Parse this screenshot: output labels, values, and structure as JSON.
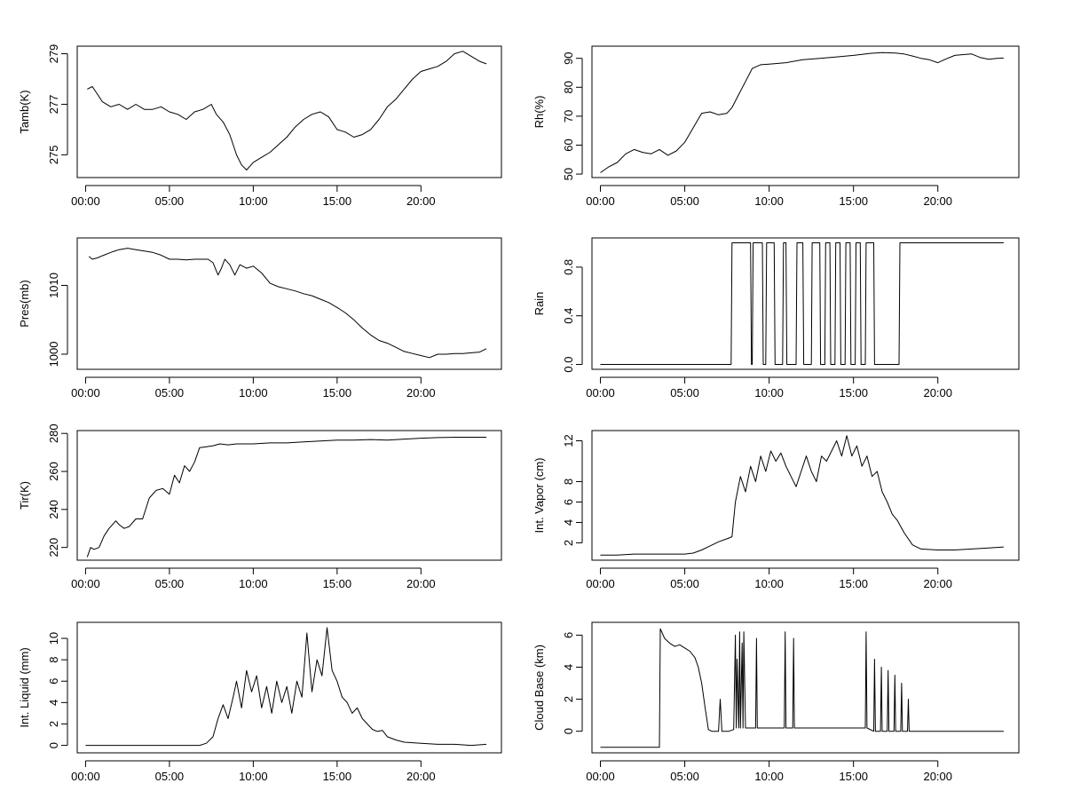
{
  "chart_data": [
    {
      "type": "line",
      "ylabel": "Tamb(K)",
      "x_ticks": [
        "00:00",
        "05:00",
        "10:00",
        "15:00",
        "20:00"
      ],
      "y_ticks": [
        "275",
        "277",
        "279"
      ],
      "ylim": [
        274.1,
        279.3
      ],
      "x_unit": "hours",
      "xlim": [
        -0.5,
        24.8
      ],
      "series": [
        {
          "x": [
            0.1,
            0.4,
            0.8,
            1.0,
            1.5,
            2.0,
            2.5,
            3.0,
            3.5,
            4.0,
            4.5,
            5.0,
            5.5,
            6.0,
            6.5,
            7.0,
            7.5,
            7.8,
            8.2,
            8.6,
            9.0,
            9.3,
            9.6,
            10.0,
            10.5,
            11.0,
            11.5,
            12.0,
            12.5,
            13.0,
            13.5,
            14.0,
            14.5,
            15.0,
            15.5,
            16.0,
            16.5,
            17.0,
            17.5,
            18.0,
            18.5,
            19.0,
            19.5,
            20.0,
            20.5,
            21.0,
            21.5,
            22.0,
            22.5,
            23.0,
            23.5,
            23.9
          ],
          "y": [
            277.6,
            277.7,
            277.3,
            277.1,
            276.9,
            277.0,
            276.8,
            277.0,
            276.8,
            276.8,
            276.9,
            276.7,
            276.6,
            276.4,
            276.7,
            276.8,
            277.0,
            276.6,
            276.3,
            275.8,
            275.0,
            274.6,
            274.4,
            274.7,
            274.9,
            275.1,
            275.4,
            275.7,
            276.1,
            276.4,
            276.6,
            276.7,
            276.5,
            276.0,
            275.9,
            275.7,
            275.8,
            276.0,
            276.4,
            276.9,
            277.2,
            277.6,
            278.0,
            278.3,
            278.4,
            278.5,
            278.7,
            279.0,
            279.1,
            278.9,
            278.7,
            278.6
          ]
        }
      ]
    },
    {
      "type": "line",
      "ylabel": "Rh(%)",
      "x_ticks": [
        "00:00",
        "05:00",
        "10:00",
        "15:00",
        "20:00"
      ],
      "y_ticks": [
        "50",
        "60",
        "70",
        "80",
        "90"
      ],
      "ylim": [
        48.8,
        94.2
      ],
      "x_unit": "hours",
      "xlim": [
        -0.5,
        24.8
      ],
      "series": [
        {
          "x": [
            0.0,
            0.5,
            1.0,
            1.5,
            2.0,
            2.5,
            3.0,
            3.5,
            4.0,
            4.5,
            5.0,
            5.5,
            6.0,
            6.5,
            7.0,
            7.5,
            7.8,
            8.2,
            8.6,
            9.0,
            9.5,
            10.0,
            11.0,
            12.0,
            13.0,
            14.0,
            15.0,
            16.0,
            16.7,
            17.5,
            18.0,
            18.5,
            19.0,
            19.5,
            20.0,
            20.5,
            21.0,
            21.5,
            22.0,
            22.5,
            23.0,
            23.5,
            23.9
          ],
          "y": [
            50.5,
            52.5,
            54.0,
            57.0,
            58.5,
            57.5,
            57.0,
            58.5,
            56.5,
            58.0,
            61.0,
            66.0,
            71.0,
            71.5,
            70.5,
            71.0,
            73.0,
            77.5,
            82.0,
            86.5,
            87.8,
            88.0,
            88.5,
            89.5,
            90.0,
            90.5,
            91.0,
            91.7,
            92.0,
            91.8,
            91.5,
            90.8,
            90.0,
            89.5,
            88.5,
            89.8,
            91.0,
            91.3,
            91.5,
            90.3,
            89.7,
            90.0,
            90.1
          ]
        }
      ]
    },
    {
      "type": "line",
      "ylabel": "Pres(mb)",
      "x_ticks": [
        "00:00",
        "05:00",
        "10:00",
        "15:00",
        "20:00"
      ],
      "y_ticks": [
        "1000",
        "1010"
      ],
      "ylim": [
        997.8,
        1016.9
      ],
      "x_unit": "hours",
      "xlim": [
        -0.5,
        24.8
      ],
      "series": [
        {
          "x": [
            0.2,
            0.4,
            0.7,
            1.0,
            1.5,
            2.0,
            2.5,
            3.0,
            3.5,
            4.0,
            4.5,
            5.0,
            5.5,
            6.0,
            6.5,
            7.0,
            7.3,
            7.6,
            7.9,
            8.1,
            8.3,
            8.6,
            8.9,
            9.2,
            9.6,
            10.0,
            10.5,
            11.0,
            11.5,
            12.0,
            12.5,
            13.0,
            13.5,
            14.0,
            14.5,
            15.0,
            15.5,
            16.0,
            16.5,
            17.0,
            17.5,
            18.0,
            18.5,
            19.0,
            19.5,
            20.0,
            20.5,
            21.0,
            21.5,
            22.0,
            22.5,
            23.0,
            23.5,
            23.9
          ],
          "y": [
            1014.2,
            1013.8,
            1014.0,
            1014.3,
            1014.8,
            1015.2,
            1015.4,
            1015.2,
            1015.0,
            1014.8,
            1014.4,
            1013.8,
            1013.8,
            1013.7,
            1013.8,
            1013.8,
            1013.8,
            1013.3,
            1011.5,
            1012.5,
            1013.8,
            1013.0,
            1011.5,
            1013.0,
            1012.5,
            1012.8,
            1011.8,
            1010.3,
            1009.8,
            1009.5,
            1009.2,
            1008.8,
            1008.5,
            1008.0,
            1007.5,
            1006.8,
            1006.0,
            1005.0,
            1003.8,
            1002.8,
            1002.0,
            1001.6,
            1001.0,
            1000.4,
            1000.1,
            999.8,
            999.5,
            1000.0,
            1000.0,
            1000.1,
            1000.1,
            1000.2,
            1000.3,
            1000.8
          ]
        }
      ]
    },
    {
      "type": "line",
      "ylabel": "Rain",
      "x_ticks": [
        "00:00",
        "05:00",
        "10:00",
        "15:00",
        "20:00"
      ],
      "y_ticks": [
        "0.0",
        "0.4",
        "0.8"
      ],
      "ylim": [
        -0.04,
        1.04
      ],
      "x_unit": "hours",
      "xlim": [
        -0.5,
        24.8
      ],
      "series": [
        {
          "x": [
            0.0,
            7.75,
            7.8,
            8.9,
            8.95,
            9.0,
            9.05,
            9.6,
            9.65,
            9.8,
            9.85,
            10.3,
            10.35,
            10.8,
            10.85,
            11.0,
            11.05,
            11.6,
            11.65,
            12.0,
            12.05,
            12.5,
            12.55,
            13.0,
            13.05,
            13.3,
            13.35,
            13.6,
            13.65,
            13.9,
            13.95,
            14.2,
            14.25,
            14.5,
            14.55,
            14.8,
            14.85,
            15.1,
            15.15,
            15.4,
            15.45,
            15.7,
            15.75,
            16.2,
            16.25,
            17.7,
            17.75,
            23.9
          ],
          "y": [
            0,
            0,
            1,
            1,
            0,
            0,
            1,
            1,
            0,
            0,
            1,
            1,
            0,
            0,
            1,
            1,
            0,
            0,
            1,
            1,
            0,
            0,
            1,
            1,
            0,
            0,
            1,
            1,
            0,
            0,
            1,
            1,
            0,
            0,
            1,
            1,
            0,
            0,
            1,
            1,
            0,
            0,
            1,
            1,
            0,
            0,
            1,
            1
          ]
        }
      ]
    },
    {
      "type": "line",
      "ylabel": "Tir(K)",
      "x_ticks": [
        "00:00",
        "05:00",
        "10:00",
        "15:00",
        "20:00"
      ],
      "y_ticks": [
        "220",
        "240",
        "260",
        "280"
      ],
      "ylim": [
        213.3,
        281.5
      ],
      "x_unit": "hours",
      "xlim": [
        -0.5,
        24.8
      ],
      "series": [
        {
          "x": [
            0.1,
            0.3,
            0.5,
            0.8,
            1.1,
            1.4,
            1.8,
            2.0,
            2.3,
            2.6,
            3.0,
            3.4,
            3.8,
            4.2,
            4.6,
            5.0,
            5.3,
            5.6,
            5.9,
            6.2,
            6.5,
            6.8,
            7.2,
            7.6,
            8.0,
            8.5,
            9.0,
            10.0,
            11.0,
            12.0,
            13.0,
            14.0,
            15.0,
            16.0,
            17.0,
            18.0,
            19.0,
            20.0,
            21.0,
            22.0,
            23.0,
            23.9
          ],
          "y": [
            215.0,
            220.0,
            219.0,
            220.0,
            226.0,
            230.0,
            234.0,
            232.0,
            230.0,
            231.0,
            235.0,
            235.0,
            246.0,
            250.0,
            251.0,
            248.0,
            258.0,
            254.0,
            263.0,
            260.0,
            265.0,
            272.5,
            273.0,
            273.5,
            274.5,
            274.0,
            274.5,
            274.5,
            275.0,
            275.0,
            275.5,
            276.0,
            276.5,
            276.5,
            276.8,
            276.5,
            277.0,
            277.5,
            277.8,
            278.0,
            278.0,
            278.0
          ]
        }
      ]
    },
    {
      "type": "line",
      "ylabel": "Int. Vapor (cm)",
      "x_ticks": [
        "00:00",
        "05:00",
        "10:00",
        "15:00",
        "20:00"
      ],
      "y_ticks": [
        "2",
        "4",
        "6",
        "8",
        "12"
      ],
      "ylim": [
        0.3,
        13.0
      ],
      "x_unit": "hours",
      "xlim": [
        -0.5,
        24.8
      ],
      "series": [
        {
          "x": [
            0.0,
            1.0,
            2.0,
            3.0,
            4.0,
            5.0,
            5.5,
            6.0,
            6.5,
            7.0,
            7.5,
            7.8,
            8.0,
            8.3,
            8.6,
            8.9,
            9.2,
            9.5,
            9.8,
            10.1,
            10.4,
            10.7,
            11.0,
            11.3,
            11.6,
            11.9,
            12.2,
            12.5,
            12.8,
            13.1,
            13.4,
            13.7,
            14.0,
            14.3,
            14.6,
            14.9,
            15.2,
            15.5,
            15.8,
            16.1,
            16.4,
            16.7,
            17.0,
            17.3,
            17.6,
            18.0,
            18.5,
            19.0,
            20.0,
            21.0,
            22.0,
            23.0,
            23.9
          ],
          "y": [
            0.8,
            0.8,
            0.9,
            0.9,
            0.9,
            0.9,
            1.0,
            1.3,
            1.7,
            2.1,
            2.4,
            2.6,
            6.0,
            8.5,
            7.0,
            9.5,
            8.0,
            10.5,
            9.0,
            11.0,
            10.0,
            10.8,
            9.5,
            8.5,
            7.5,
            9.0,
            10.5,
            9.0,
            8.0,
            10.5,
            10.0,
            11.0,
            12.0,
            10.5,
            12.5,
            10.5,
            11.5,
            9.5,
            10.5,
            8.5,
            9.0,
            7.0,
            6.0,
            4.8,
            4.2,
            3.0,
            1.8,
            1.4,
            1.3,
            1.3,
            1.4,
            1.5,
            1.6
          ]
        }
      ]
    },
    {
      "type": "line",
      "ylabel": "Int. Liquid (mm)",
      "x_ticks": [
        "00:00",
        "05:00",
        "10:00",
        "15:00",
        "20:00"
      ],
      "y_ticks": [
        "0",
        "2",
        "4",
        "6",
        "8",
        "10"
      ],
      "ylim": [
        -0.7,
        11.5
      ],
      "x_unit": "hours",
      "xlim": [
        -0.5,
        24.8
      ],
      "series": [
        {
          "x": [
            0.0,
            1.0,
            2.0,
            3.0,
            4.0,
            5.0,
            6.0,
            6.8,
            7.2,
            7.6,
            7.9,
            8.2,
            8.5,
            8.8,
            9.0,
            9.3,
            9.6,
            9.9,
            10.2,
            10.5,
            10.8,
            11.1,
            11.4,
            11.7,
            12.0,
            12.3,
            12.6,
            12.9,
            13.2,
            13.5,
            13.8,
            14.1,
            14.4,
            14.7,
            15.0,
            15.3,
            15.6,
            15.9,
            16.2,
            16.5,
            16.8,
            17.1,
            17.4,
            17.7,
            18.0,
            18.5,
            19.0,
            20.0,
            21.0,
            22.0,
            23.0,
            23.9
          ],
          "y": [
            0.0,
            0.0,
            0.0,
            0.0,
            0.0,
            0.0,
            0.0,
            0.0,
            0.2,
            0.8,
            2.5,
            3.8,
            2.5,
            4.5,
            6.0,
            3.5,
            7.0,
            5.0,
            6.5,
            3.5,
            5.5,
            3.0,
            6.0,
            4.0,
            5.5,
            3.0,
            6.0,
            4.5,
            10.5,
            5.0,
            8.0,
            6.5,
            11.0,
            7.0,
            6.0,
            4.5,
            4.0,
            3.0,
            3.5,
            2.5,
            2.0,
            1.5,
            1.3,
            1.4,
            0.8,
            0.5,
            0.3,
            0.2,
            0.1,
            0.1,
            0.0,
            0.1
          ]
        }
      ]
    },
    {
      "type": "line",
      "ylabel": "Cloud Base (km)",
      "x_ticks": [
        "00:00",
        "05:00",
        "10:00",
        "15:00",
        "20:00"
      ],
      "y_ticks": [
        "0",
        "2",
        "4",
        "6"
      ],
      "ylim": [
        -1.35,
        6.8
      ],
      "x_unit": "hours",
      "xlim": [
        -0.5,
        24.8
      ],
      "series": [
        {
          "x": [
            0.0,
            3.5,
            3.55,
            3.8,
            4.1,
            4.4,
            4.7,
            5.0,
            5.3,
            5.6,
            5.8,
            6.0,
            6.2,
            6.4,
            6.6,
            7.0,
            7.1,
            7.2,
            7.6,
            7.9,
            8.0,
            8.05,
            8.1,
            8.2,
            8.25,
            8.3,
            8.4,
            8.45,
            8.5,
            8.6,
            9.2,
            9.25,
            9.3,
            10.9,
            10.95,
            11.0,
            11.4,
            11.45,
            11.5,
            12.0,
            14.0,
            15.7,
            15.75,
            15.8,
            16.2,
            16.25,
            16.3,
            16.6,
            16.65,
            16.7,
            17.0,
            17.05,
            17.1,
            17.4,
            17.45,
            17.5,
            17.8,
            17.85,
            17.9,
            18.2,
            18.25,
            18.3,
            18.6,
            19.0,
            20.0,
            21.0,
            22.0,
            23.0,
            23.9
          ],
          "y": [
            -1.0,
            -1.0,
            6.4,
            5.8,
            5.5,
            5.3,
            5.4,
            5.2,
            5.0,
            4.6,
            4.0,
            3.0,
            1.5,
            0.1,
            0.0,
            0.0,
            2.0,
            0.0,
            0.0,
            0.1,
            6.0,
            0.2,
            4.5,
            0.2,
            6.2,
            0.2,
            5.5,
            0.2,
            6.2,
            0.2,
            0.2,
            5.8,
            0.2,
            0.2,
            6.2,
            0.2,
            0.2,
            5.8,
            0.2,
            0.2,
            0.2,
            0.2,
            6.2,
            0.2,
            0.0,
            4.5,
            0.0,
            0.0,
            4.0,
            0.0,
            0.0,
            3.8,
            0.0,
            0.0,
            3.5,
            0.0,
            0.0,
            3.0,
            0.0,
            0.0,
            2.0,
            0.0,
            0.0,
            0.0,
            0.0,
            0.0,
            0.0,
            0.0,
            0.0
          ]
        }
      ]
    }
  ]
}
